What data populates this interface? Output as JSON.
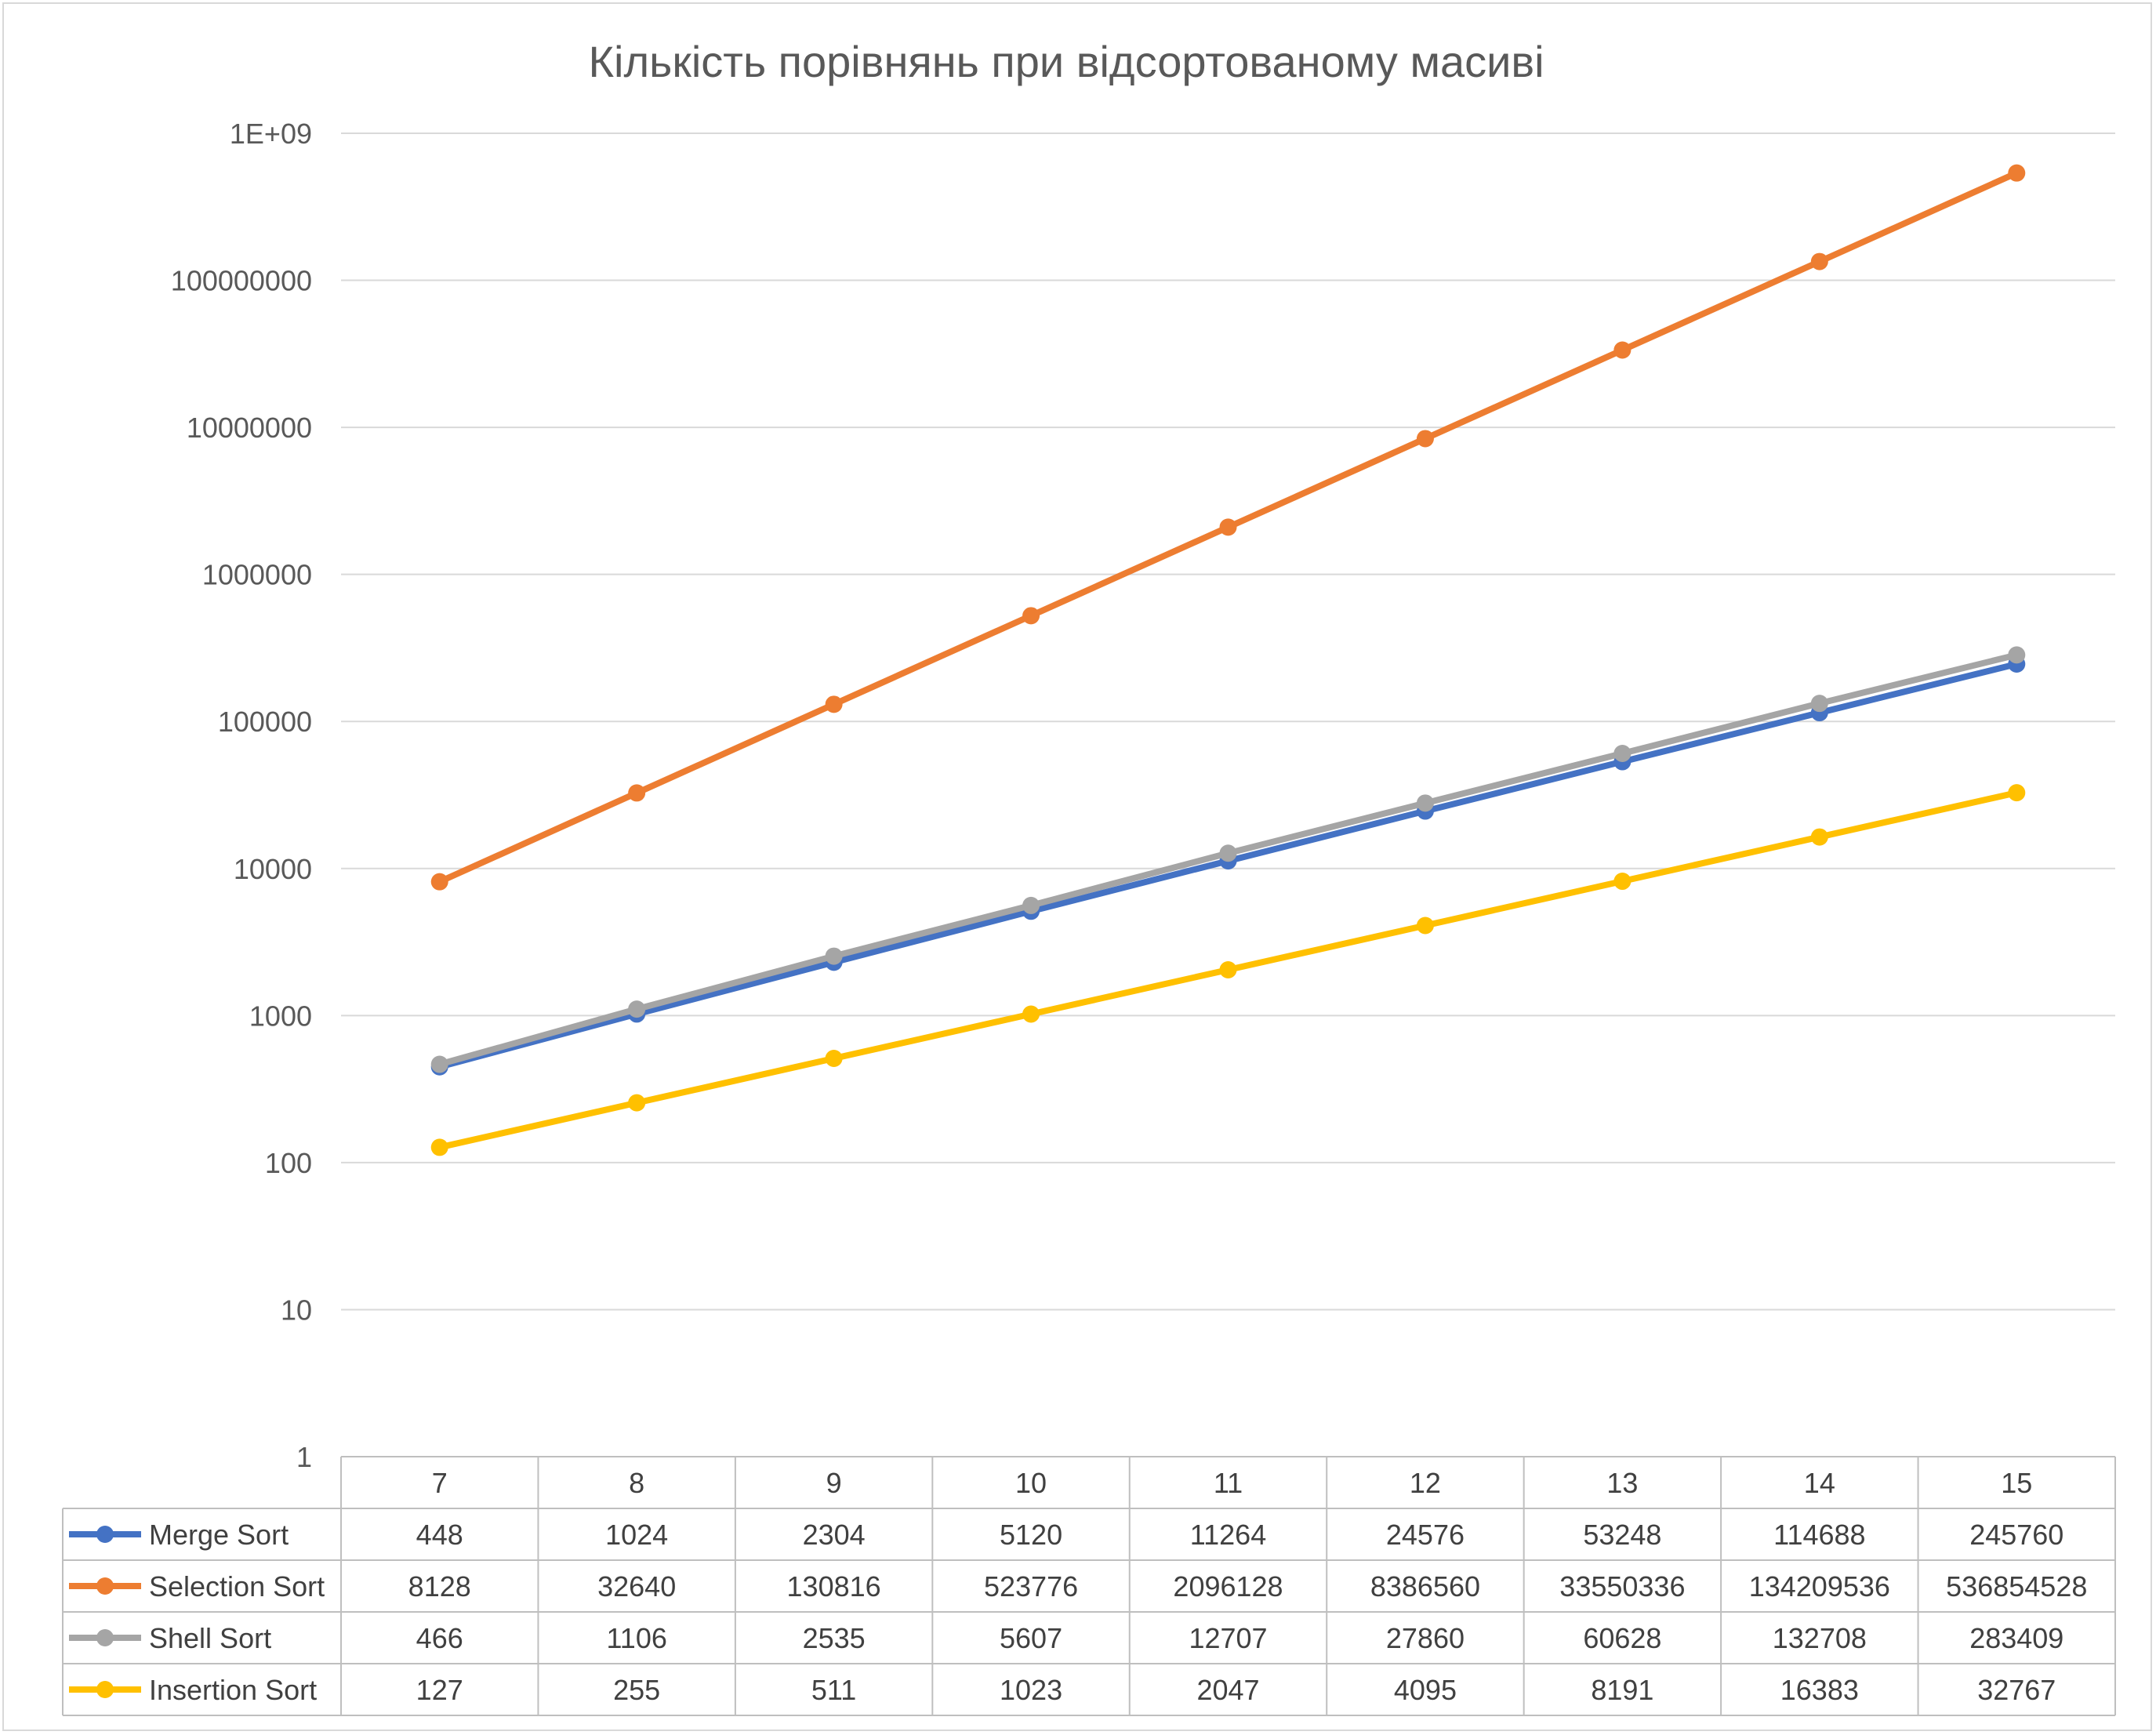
{
  "chart_data": {
    "type": "line",
    "title": "Кількість порівнянь при відсортованому масиві",
    "y_scale": "log",
    "ylim": [
      1,
      1000000000
    ],
    "y_ticks": [
      "1",
      "10",
      "100",
      "1000",
      "10000",
      "100000",
      "1000000",
      "10000000",
      "100000000",
      "1E+09"
    ],
    "grid": true,
    "legend_placement": "data-table",
    "categories": [
      "7",
      "8",
      "9",
      "10",
      "11",
      "12",
      "13",
      "14",
      "15"
    ],
    "series": [
      {
        "name": "Merge Sort",
        "color": "#4472c4",
        "values": [
          448,
          1024,
          2304,
          5120,
          11264,
          24576,
          53248,
          114688,
          245760
        ]
      },
      {
        "name": "Selection Sort",
        "color": "#ed7d31",
        "values": [
          8128,
          32640,
          130816,
          523776,
          2096128,
          8386560,
          33550336,
          134209536,
          536854528
        ]
      },
      {
        "name": "Shell Sort",
        "color": "#a5a5a5",
        "values": [
          466,
          1106,
          2535,
          5607,
          12707,
          27860,
          60628,
          132708,
          283409
        ]
      },
      {
        "name": "Insertion Sort",
        "color": "#ffc000",
        "values": [
          127,
          255,
          511,
          1023,
          2047,
          4095,
          8191,
          16383,
          32767
        ]
      }
    ]
  }
}
